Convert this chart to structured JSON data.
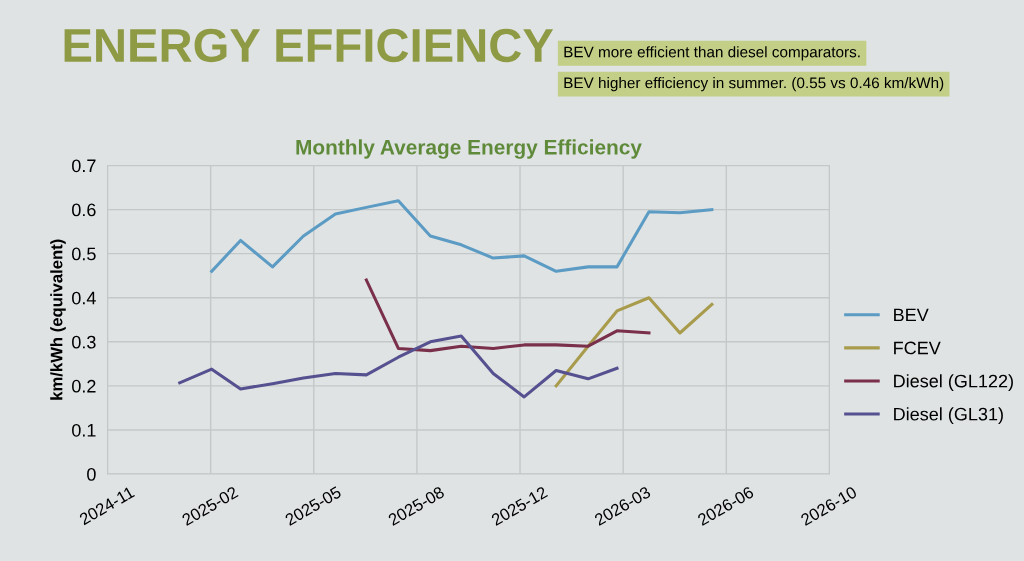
{
  "chart_data": {
    "type": "line",
    "title": "ENERGY EFFICIENCY",
    "subtitle": "Monthly Average Energy Efficiency",
    "ylabel": "km/kWh (equivalent)",
    "annotations": [
      "BEV more efficient than diesel comparators.",
      "BEV higher efficiency in summer. (0.55 vs 0.46 km/kWh)"
    ],
    "series": [
      {
        "name": "BEV",
        "color": "#5b9bc4",
        "x": [
          "2025-02-10",
          "2025-03-10",
          "2025-04-10",
          "2025-05-10",
          "2025-06-10",
          "2025-07-10",
          "2025-08-10",
          "2025-09-10",
          "2025-10-10",
          "2025-11-10",
          "2025-12-10",
          "2026-01-10",
          "2026-02-10",
          "2026-03-10",
          "2026-04-10",
          "2026-05-10",
          "2026-06-10"
        ],
        "values": [
          0.46,
          0.53,
          0.47,
          0.54,
          0.59,
          0.605,
          0.62,
          0.54,
          0.52,
          0.49,
          0.495,
          0.46,
          0.47,
          0.47,
          0.595,
          0.593,
          0.6
        ]
      },
      {
        "name": "FCEV",
        "color": "#a89b4c",
        "x": [
          "2026-01-10",
          "2026-02-10",
          "2026-03-10",
          "2026-04-10",
          "2026-05-10",
          "2026-06-10"
        ],
        "values": [
          0.2,
          0.29,
          0.37,
          0.4,
          0.32,
          0.385
        ]
      },
      {
        "name": "Diesel (GL122)",
        "color": "#7a2f4a",
        "x": [
          "2025-07-10",
          "2025-08-10",
          "2025-09-10",
          "2025-10-10",
          "2025-11-10",
          "2025-12-10",
          "2026-01-10",
          "2026-02-10",
          "2026-03-10",
          "2026-04-10"
        ],
        "values": [
          0.44,
          0.285,
          0.28,
          0.29,
          0.285,
          0.293,
          0.293,
          0.29,
          0.325,
          0.32
        ]
      },
      {
        "name": "Diesel (GL31)",
        "color": "#55508f",
        "x": [
          "2025-01-10",
          "2025-02-10",
          "2025-03-10",
          "2025-04-10",
          "2025-05-10",
          "2025-06-10",
          "2025-07-10",
          "2025-08-10",
          "2025-09-10",
          "2025-10-10",
          "2025-11-10",
          "2025-12-10",
          "2026-01-10",
          "2026-02-10",
          "2026-03-10"
        ],
        "values": [
          0.207,
          0.238,
          0.193,
          0.205,
          0.218,
          0.228,
          0.225,
          0.265,
          0.3,
          0.313,
          0.228,
          0.175,
          0.235,
          0.216,
          0.24
        ]
      }
    ],
    "xlim": [
      "2024-11-01",
      "2026-10-02"
    ],
    "xticks": [
      {
        "value": "2024-11-01",
        "label": "2024-11"
      },
      {
        "value": "2025-02-09",
        "label": "2025-02"
      },
      {
        "value": "2025-05-20",
        "label": "2025-05"
      },
      {
        "value": "2025-08-28",
        "label": "2025-08"
      },
      {
        "value": "2025-12-06",
        "label": "2025-12"
      },
      {
        "value": "2026-03-16",
        "label": "2026-03"
      },
      {
        "value": "2026-06-24",
        "label": "2026-06"
      },
      {
        "value": "2026-10-02",
        "label": "2026-10"
      }
    ],
    "ylim": [
      0,
      0.7
    ],
    "yticks": [
      0,
      0.1,
      0.2,
      0.3,
      0.4,
      0.5,
      0.6,
      0.7
    ],
    "grid": true,
    "legend": "right",
    "marker": "none",
    "line_style": "solid"
  }
}
